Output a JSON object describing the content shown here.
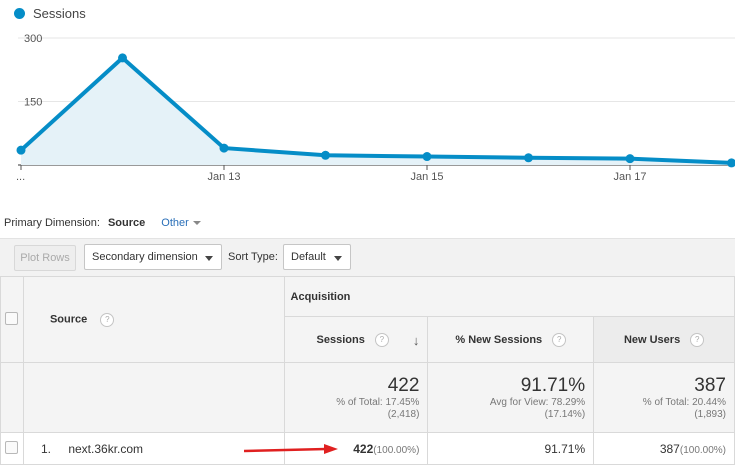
{
  "chart": {
    "legend": "Sessions",
    "color": "#058dc7",
    "y_ticks": [
      "300",
      "150"
    ],
    "x_ticks": [
      "...",
      "Jan 13",
      "Jan 15",
      "Jan 17"
    ]
  },
  "chart_data": {
    "type": "area",
    "title": "",
    "xlabel": "",
    "ylabel": "",
    "ylim": [
      0,
      300
    ],
    "x": [
      "Jan 11",
      "Jan 12",
      "Jan 13",
      "Jan 14",
      "Jan 15",
      "Jan 16",
      "Jan 17",
      "Jan 18"
    ],
    "series": [
      {
        "name": "Sessions",
        "values": [
          35,
          253,
          40,
          23,
          20,
          17,
          15,
          5
        ]
      }
    ]
  },
  "dimension_bar": {
    "label": "Primary Dimension:",
    "selected": "Source",
    "other": "Other"
  },
  "toolbar": {
    "plot_rows": "Plot Rows",
    "secondary_dimension": "Secondary dimension",
    "sort_type_label": "Sort Type:",
    "sort_type_value": "Default"
  },
  "table": {
    "source_header": "Source",
    "group_header": "Acquisition",
    "columns": {
      "sessions": "Sessions",
      "new_sessions": "% New Sessions",
      "new_users": "New Users"
    },
    "totals": {
      "sessions": {
        "value": "422",
        "line1": "% of Total: 17.45%",
        "line2": "(2,418)"
      },
      "new_sessions": {
        "value": "91.71%",
        "line1": "Avg for View: 78.29%",
        "line2": "(17.14%)"
      },
      "new_users": {
        "value": "387",
        "line1": "% of Total: 20.44%",
        "line2": "(1,893)"
      }
    },
    "rows": [
      {
        "index": "1.",
        "source": "next.36kr.com",
        "sessions": "422",
        "sessions_pct": "(100.00%)",
        "new_sessions": "91.71%",
        "new_users": "387",
        "new_users_pct": "(100.00%)"
      }
    ]
  },
  "help_glyph": "?",
  "sort_arrow": "↓"
}
